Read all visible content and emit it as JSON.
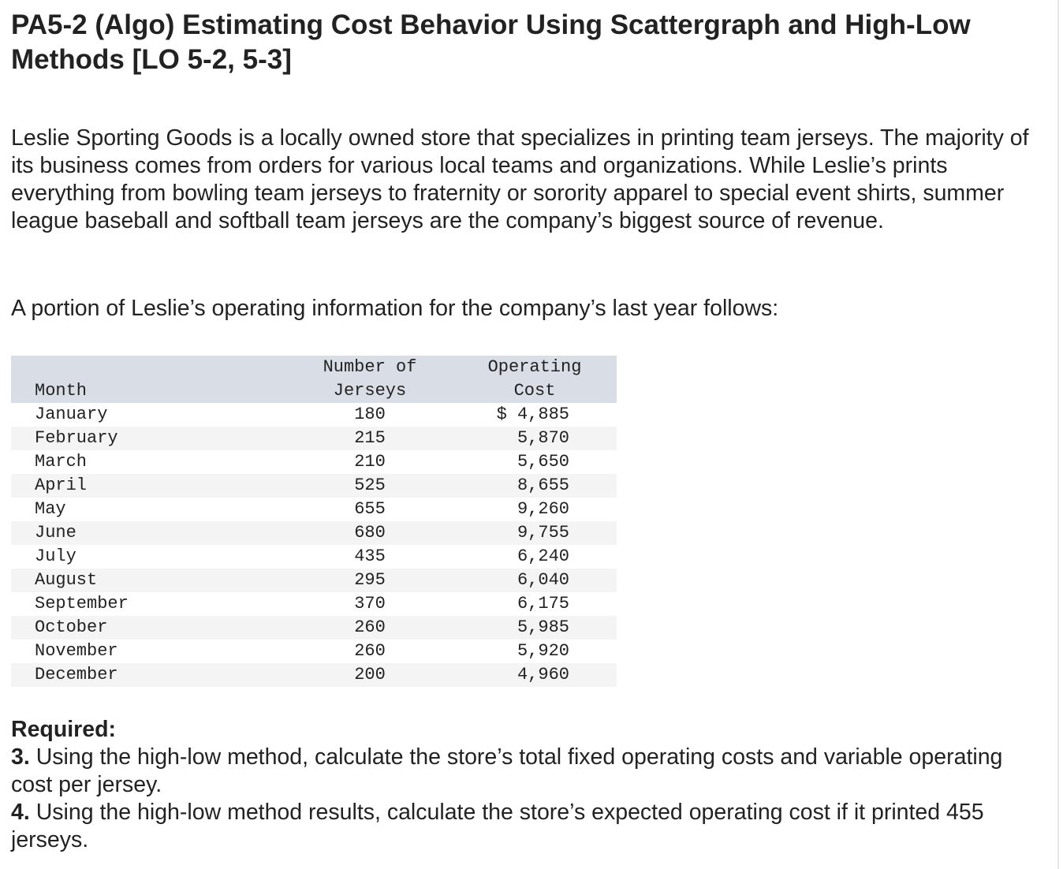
{
  "title": "PA5-2 (Algo) Estimating Cost Behavior Using Scattergraph and High-Low Methods [LO 5-2, 5-3]",
  "intro": "Leslie Sporting Goods is a locally owned store that specializes in printing team jerseys. The majority of its business comes from orders for various local teams and organizations. While Leslie’s prints everything from bowling team jerseys to fraternity or sorority apparel to special event shirts, summer league baseball and softball team jerseys are the company’s biggest source of revenue.",
  "lead": "A portion of Leslie’s operating information for the company’s last year follows:",
  "table": {
    "headers": {
      "month": "Month",
      "jerseys_1": "Number of",
      "jerseys_2": "Jerseys",
      "cost_1": "Operating",
      "cost_2": "Cost"
    },
    "rows": [
      {
        "month": "January",
        "jerseys": "180",
        "cost": "$ 4,885"
      },
      {
        "month": "February",
        "jerseys": "215",
        "cost": "5,870"
      },
      {
        "month": "March",
        "jerseys": "210",
        "cost": "5,650"
      },
      {
        "month": "April",
        "jerseys": "525",
        "cost": "8,655"
      },
      {
        "month": "May",
        "jerseys": "655",
        "cost": "9,260"
      },
      {
        "month": "June",
        "jerseys": "680",
        "cost": "9,755"
      },
      {
        "month": "July",
        "jerseys": "435",
        "cost": "6,240"
      },
      {
        "month": "August",
        "jerseys": "295",
        "cost": "6,040"
      },
      {
        "month": "September",
        "jerseys": "370",
        "cost": "6,175"
      },
      {
        "month": "October",
        "jerseys": "260",
        "cost": "5,985"
      },
      {
        "month": "November",
        "jerseys": "260",
        "cost": "5,920"
      },
      {
        "month": "December",
        "jerseys": "200",
        "cost": "4,960"
      }
    ]
  },
  "required": {
    "heading": "Required:",
    "items": [
      {
        "num": "3.",
        "text": " Using the high-low method, calculate the store’s total fixed operating costs and variable operating cost per jersey."
      },
      {
        "num": "4.",
        "text": " Using the high-low method results, calculate the store’s expected operating cost if it printed 455 jerseys."
      }
    ]
  }
}
